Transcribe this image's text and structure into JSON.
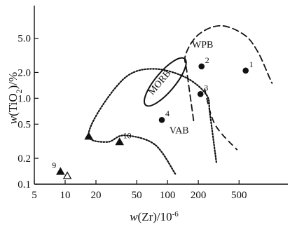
{
  "chart_data": {
    "type": "scatter",
    "title": "",
    "xscale": "log",
    "yscale": "log",
    "xlim": [
      5,
      1500
    ],
    "ylim": [
      0.1,
      12
    ],
    "xticks": [
      {
        "value": 5,
        "label": "5"
      },
      {
        "value": 10,
        "label": "10"
      },
      {
        "value": 20,
        "label": "20"
      },
      {
        "value": 50,
        "label": "50"
      },
      {
        "value": 100,
        "label": "100"
      },
      {
        "value": 200,
        "label": "200"
      },
      {
        "value": 500,
        "label": "500"
      }
    ],
    "yticks": [
      {
        "value": 0.1,
        "label": "0.1"
      },
      {
        "value": 0.2,
        "label": "0.2"
      },
      {
        "value": 0.5,
        "label": "0.5"
      },
      {
        "value": 1.0,
        "label": "1.0"
      },
      {
        "value": 2.0,
        "label": "2.0"
      },
      {
        "value": 5.0,
        "label": "5.0"
      }
    ],
    "xlabel": {
      "prefix": "w(Zr)/10",
      "sup": "-6"
    },
    "ylabel": {
      "prefix": "w(TiO",
      "sub": "2",
      "suffix": ")/%"
    },
    "fields": [
      {
        "label": "WPB",
        "style": "dashed",
        "label_at": [
          220,
          3.9
        ],
        "path": [
          [
            180,
            0.55
          ],
          [
            155,
            2.0
          ],
          [
            150,
            3.2
          ],
          [
            200,
            5.5
          ],
          [
            330,
            7.0
          ],
          [
            560,
            5.5
          ],
          [
            760,
            3.5
          ],
          [
            1000,
            1.7
          ],
          [
            1050,
            1.5
          ]
        ],
        "branch": [
          [
            230,
            1.3
          ],
          [
            290,
            0.5
          ],
          [
            480,
            0.25
          ]
        ]
      },
      {
        "label": "MORB",
        "style": "solid",
        "label_at": [
          88,
          1.45
        ],
        "label_rotate": -50,
        "ellipse": {
          "center": [
            95,
            1.55
          ],
          "x_span": [
            55,
            165
          ],
          "y_span": [
            0.9,
            2.7
          ]
        }
      },
      {
        "label": "VAB",
        "style": "dotted",
        "label_at": [
          130,
          0.39
        ],
        "path": [
          [
            300,
            0.18
          ],
          [
            260,
            0.65
          ],
          [
            240,
            1.1
          ],
          [
            150,
            1.75
          ],
          [
            75,
            2.2
          ],
          [
            40,
            1.8
          ],
          [
            22,
            0.75
          ],
          [
            17,
            0.36
          ],
          [
            26,
            0.31
          ],
          [
            38,
            0.37
          ],
          [
            75,
            0.29
          ],
          [
            120,
            0.13
          ]
        ]
      }
    ],
    "points": [
      {
        "label": "1",
        "marker": "circle",
        "x": 580,
        "y": 2.1
      },
      {
        "label": "2",
        "marker": "circle",
        "x": 215,
        "y": 2.35
      },
      {
        "label": "3",
        "marker": "circle",
        "x": 210,
        "y": 1.12
      },
      {
        "label": "4",
        "marker": "circle",
        "x": 88,
        "y": 0.56
      },
      {
        "label": "",
        "marker": "triangle",
        "x": 17,
        "y": 0.36
      },
      {
        "label": "10",
        "marker": "triangle",
        "x": 34,
        "y": 0.31
      },
      {
        "label": "9",
        "marker": "triangle",
        "x": 9,
        "y": 0.14
      },
      {
        "label": "",
        "marker": "triangle-open",
        "x": 10.5,
        "y": 0.125
      }
    ]
  }
}
